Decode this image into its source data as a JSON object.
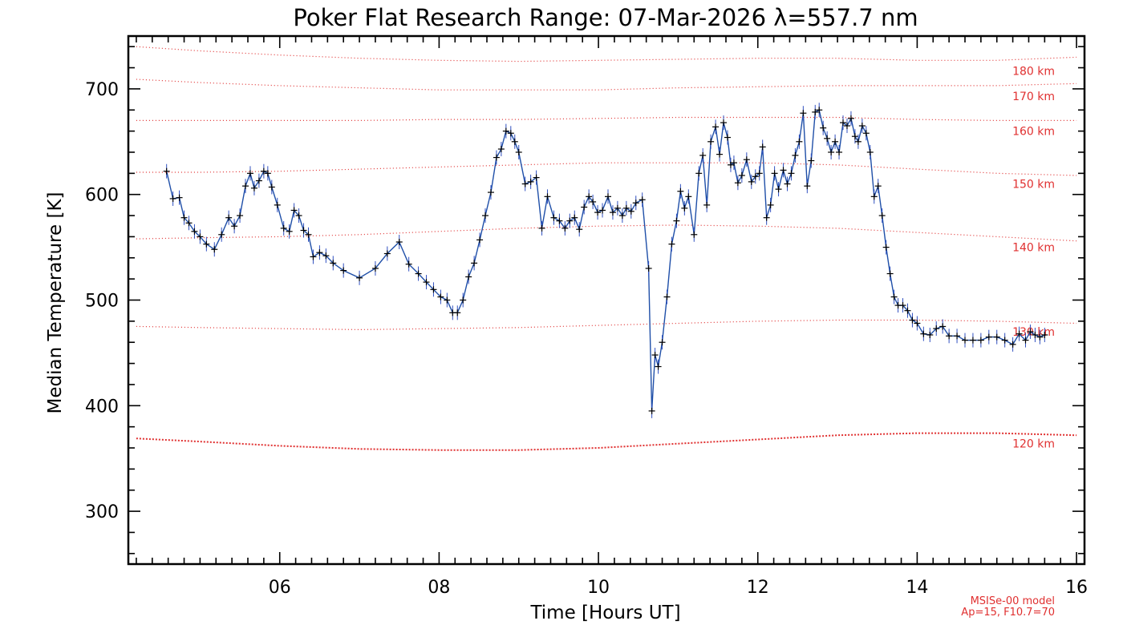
{
  "chart_data": {
    "type": "line",
    "title": "Poker Flat Research Range: 07-Mar-2026 λ=557.7 nm",
    "xlabel": "Time [Hours UT]",
    "ylabel": "Median Temperature [K]",
    "xlim": [
      4.1,
      16.1
    ],
    "ylim": [
      250,
      750
    ],
    "x_ticks": [
      6,
      8,
      10,
      12,
      14,
      16
    ],
    "x_tick_labels": [
      "06",
      "08",
      "10",
      "12",
      "14",
      "16"
    ],
    "y_ticks": [
      300,
      400,
      500,
      600,
      700
    ],
    "y_tick_labels": [
      "300",
      "400",
      "500",
      "600",
      "700"
    ],
    "colors": {
      "data_line": "#1f4fa8",
      "markers": "#000000",
      "model": "#e03030",
      "errorbar": "#3050c0"
    },
    "series": [
      {
        "name": "Median Temperature",
        "points": [
          [
            4.58,
            622
          ],
          [
            4.66,
            596
          ],
          [
            4.74,
            597
          ],
          [
            4.8,
            578
          ],
          [
            4.86,
            573
          ],
          [
            4.93,
            565
          ],
          [
            5.0,
            560
          ],
          [
            5.08,
            553
          ],
          [
            5.18,
            548
          ],
          [
            5.27,
            562
          ],
          [
            5.36,
            578
          ],
          [
            5.43,
            570
          ],
          [
            5.5,
            580
          ],
          [
            5.57,
            608
          ],
          [
            5.63,
            620
          ],
          [
            5.68,
            606
          ],
          [
            5.74,
            613
          ],
          [
            5.8,
            622
          ],
          [
            5.85,
            620
          ],
          [
            5.9,
            607
          ],
          [
            5.97,
            590
          ],
          [
            6.05,
            568
          ],
          [
            6.12,
            565
          ],
          [
            6.18,
            585
          ],
          [
            6.24,
            580
          ],
          [
            6.3,
            566
          ],
          [
            6.36,
            562
          ],
          [
            6.42,
            541
          ],
          [
            6.5,
            545
          ],
          [
            6.58,
            542
          ],
          [
            6.67,
            535
          ],
          [
            6.8,
            528
          ],
          [
            7.0,
            521
          ],
          [
            7.2,
            530
          ],
          [
            7.35,
            544
          ],
          [
            7.5,
            555
          ],
          [
            7.62,
            534
          ],
          [
            7.74,
            525
          ],
          [
            7.84,
            517
          ],
          [
            7.93,
            510
          ],
          [
            8.02,
            503
          ],
          [
            8.1,
            500
          ],
          [
            8.17,
            488
          ],
          [
            8.23,
            488
          ],
          [
            8.3,
            500
          ],
          [
            8.37,
            522
          ],
          [
            8.44,
            535
          ],
          [
            8.51,
            557
          ],
          [
            8.58,
            580
          ],
          [
            8.65,
            602
          ],
          [
            8.72,
            635
          ],
          [
            8.78,
            643
          ],
          [
            8.84,
            660
          ],
          [
            8.9,
            658
          ],
          [
            8.95,
            650
          ],
          [
            9.0,
            640
          ],
          [
            9.08,
            610
          ],
          [
            9.15,
            612
          ],
          [
            9.22,
            616
          ],
          [
            9.29,
            568
          ],
          [
            9.36,
            598
          ],
          [
            9.44,
            578
          ],
          [
            9.51,
            575
          ],
          [
            9.58,
            568
          ],
          [
            9.64,
            575
          ],
          [
            9.7,
            578
          ],
          [
            9.76,
            567
          ],
          [
            9.82,
            588
          ],
          [
            9.88,
            598
          ],
          [
            9.93,
            593
          ],
          [
            9.99,
            583
          ],
          [
            10.05,
            585
          ],
          [
            10.12,
            598
          ],
          [
            10.18,
            583
          ],
          [
            10.24,
            587
          ],
          [
            10.3,
            580
          ],
          [
            10.35,
            587
          ],
          [
            10.41,
            584
          ],
          [
            10.47,
            592
          ],
          [
            10.55,
            595
          ],
          [
            10.63,
            530
          ],
          [
            10.67,
            395
          ],
          [
            10.71,
            448
          ],
          [
            10.75,
            437
          ],
          [
            10.8,
            460
          ],
          [
            10.86,
            503
          ],
          [
            10.92,
            553
          ],
          [
            10.98,
            575
          ],
          [
            11.03,
            603
          ],
          [
            11.08,
            587
          ],
          [
            11.13,
            598
          ],
          [
            11.2,
            562
          ],
          [
            11.26,
            620
          ],
          [
            11.31,
            637
          ],
          [
            11.36,
            590
          ],
          [
            11.41,
            650
          ],
          [
            11.47,
            664
          ],
          [
            11.52,
            638
          ],
          [
            11.57,
            668
          ],
          [
            11.62,
            654
          ],
          [
            11.66,
            628
          ],
          [
            11.7,
            630
          ],
          [
            11.75,
            611
          ],
          [
            11.8,
            618
          ],
          [
            11.86,
            633
          ],
          [
            11.92,
            612
          ],
          [
            11.97,
            617
          ],
          [
            12.02,
            620
          ],
          [
            12.06,
            645
          ],
          [
            12.11,
            578
          ],
          [
            12.16,
            590
          ],
          [
            12.21,
            620
          ],
          [
            12.26,
            605
          ],
          [
            12.32,
            623
          ],
          [
            12.37,
            610
          ],
          [
            12.42,
            620
          ],
          [
            12.47,
            637
          ],
          [
            12.52,
            650
          ],
          [
            12.57,
            677
          ],
          [
            12.62,
            608
          ],
          [
            12.67,
            632
          ],
          [
            12.72,
            678
          ],
          [
            12.77,
            680
          ],
          [
            12.82,
            663
          ],
          [
            12.87,
            653
          ],
          [
            12.92,
            640
          ],
          [
            12.97,
            650
          ],
          [
            13.02,
            640
          ],
          [
            13.07,
            668
          ],
          [
            13.12,
            665
          ],
          [
            13.17,
            672
          ],
          [
            13.22,
            655
          ],
          [
            13.26,
            650
          ],
          [
            13.31,
            665
          ],
          [
            13.36,
            658
          ],
          [
            13.41,
            640
          ],
          [
            13.46,
            598
          ],
          [
            13.51,
            608
          ],
          [
            13.56,
            580
          ],
          [
            13.61,
            550
          ],
          [
            13.66,
            525
          ],
          [
            13.71,
            503
          ],
          [
            13.76,
            495
          ],
          [
            13.82,
            495
          ],
          [
            13.88,
            490
          ],
          [
            13.94,
            481
          ],
          [
            14.0,
            478
          ],
          [
            14.08,
            468
          ],
          [
            14.16,
            467
          ],
          [
            14.24,
            473
          ],
          [
            14.32,
            475
          ],
          [
            14.4,
            466
          ],
          [
            14.5,
            466
          ],
          [
            14.6,
            462
          ],
          [
            14.7,
            462
          ],
          [
            14.8,
            462
          ],
          [
            14.9,
            465
          ],
          [
            15.0,
            465
          ],
          [
            15.1,
            462
          ],
          [
            15.2,
            458
          ],
          [
            15.28,
            468
          ],
          [
            15.36,
            462
          ],
          [
            15.42,
            470
          ],
          [
            15.48,
            467
          ],
          [
            15.54,
            465
          ],
          [
            15.6,
            467
          ]
        ]
      }
    ],
    "model_curves": [
      {
        "label": "180 km",
        "points": [
          [
            4.2,
            740
          ],
          [
            5,
            736
          ],
          [
            6,
            732
          ],
          [
            7,
            729
          ],
          [
            8,
            727
          ],
          [
            9,
            726
          ],
          [
            10,
            727
          ],
          [
            11,
            728
          ],
          [
            12,
            729
          ],
          [
            13,
            729
          ],
          [
            14,
            727
          ],
          [
            15,
            727
          ],
          [
            16,
            730
          ]
        ]
      },
      {
        "label": "170 km",
        "points": [
          [
            4.2,
            709
          ],
          [
            5,
            706
          ],
          [
            6,
            703
          ],
          [
            7,
            701
          ],
          [
            8,
            699
          ],
          [
            9,
            699
          ],
          [
            10,
            699
          ],
          [
            11,
            701
          ],
          [
            12,
            702
          ],
          [
            13,
            703
          ],
          [
            14,
            703
          ],
          [
            15,
            703
          ],
          [
            16,
            705
          ]
        ]
      },
      {
        "label": "160 km",
        "points": [
          [
            4.2,
            670
          ],
          [
            5,
            670
          ],
          [
            6,
            670
          ],
          [
            7,
            670
          ],
          [
            8,
            671
          ],
          [
            9,
            671
          ],
          [
            10,
            672
          ],
          [
            11,
            673
          ],
          [
            12,
            673
          ],
          [
            13,
            673
          ],
          [
            14,
            671
          ],
          [
            15,
            670
          ],
          [
            16,
            670
          ]
        ]
      },
      {
        "label": "150 km",
        "points": [
          [
            4.2,
            621
          ],
          [
            5,
            621
          ],
          [
            6,
            622
          ],
          [
            7,
            624
          ],
          [
            8,
            626
          ],
          [
            9,
            628
          ],
          [
            10,
            630
          ],
          [
            11,
            630
          ],
          [
            12,
            630
          ],
          [
            13,
            628
          ],
          [
            14,
            624
          ],
          [
            15,
            620
          ],
          [
            16,
            618
          ]
        ]
      },
      {
        "label": "140 km",
        "points": [
          [
            4.2,
            558
          ],
          [
            5,
            559
          ],
          [
            6,
            560
          ],
          [
            7,
            562
          ],
          [
            8,
            565
          ],
          [
            9,
            568
          ],
          [
            10,
            570
          ],
          [
            11,
            571
          ],
          [
            12,
            570
          ],
          [
            13,
            568
          ],
          [
            14,
            564
          ],
          [
            15,
            560
          ],
          [
            16,
            556
          ]
        ]
      },
      {
        "label": "130 km",
        "points": [
          [
            4.2,
            475
          ],
          [
            5,
            474
          ],
          [
            6,
            473
          ],
          [
            7,
            472
          ],
          [
            8,
            473
          ],
          [
            9,
            474
          ],
          [
            10,
            476
          ],
          [
            11,
            478
          ],
          [
            12,
            480
          ],
          [
            13,
            481
          ],
          [
            14,
            481
          ],
          [
            15,
            480
          ],
          [
            16,
            478
          ]
        ]
      },
      {
        "label": "120 km",
        "points": [
          [
            4.2,
            369
          ],
          [
            5,
            366
          ],
          [
            6,
            362
          ],
          [
            7,
            359
          ],
          [
            8,
            358
          ],
          [
            9,
            358
          ],
          [
            10,
            360
          ],
          [
            11,
            364
          ],
          [
            12,
            368
          ],
          [
            13,
            372
          ],
          [
            14,
            374
          ],
          [
            15,
            374
          ],
          [
            16,
            372
          ]
        ]
      }
    ],
    "model_note": [
      "MSISe-00 model",
      "Ap=15, F10.7=70"
    ]
  }
}
